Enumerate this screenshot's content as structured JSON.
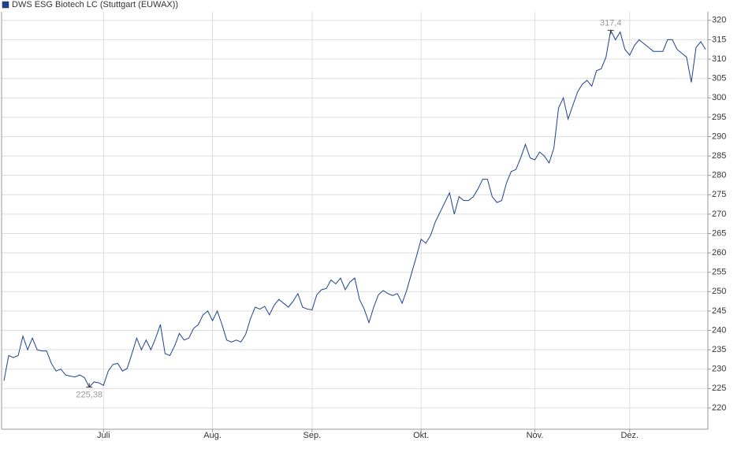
{
  "chart_data": {
    "type": "line",
    "series": [
      {
        "name": "DWS ESG Biotech LC (Stuttgart (EUWAX))",
        "color": "#1d4290",
        "values": [
          227,
          233.5,
          233,
          233.5,
          238.5,
          235,
          238,
          235,
          234.7,
          234.7,
          231.5,
          229.5,
          230,
          228.5,
          228.2,
          228,
          228.5,
          227.8,
          225.38,
          226.7,
          226.5,
          225.8,
          229.5,
          231.2,
          231.5,
          229.5,
          230.2,
          234,
          238,
          235,
          237.5,
          235,
          238,
          241.5,
          234,
          233.5,
          236,
          239.2,
          237.5,
          238,
          240.5,
          241.5,
          244,
          245,
          242.5,
          245,
          241.5,
          237.5,
          237,
          237.5,
          237,
          239,
          243,
          246,
          245.5,
          246.2,
          244,
          246.5,
          248,
          247,
          246,
          247.5,
          249.5,
          246,
          245.5,
          245.3,
          249.2,
          250.5,
          250.8,
          253,
          252,
          253.5,
          250.5,
          252.5,
          253.5,
          248,
          245.5,
          242,
          246,
          249.2,
          250.3,
          249.5,
          249,
          249.5,
          247,
          250.5,
          254.8,
          259,
          263.5,
          262.5,
          264.5,
          268,
          270.5,
          273,
          275.5,
          270,
          274.5,
          273.5,
          273.5,
          274.5,
          276.5,
          279,
          279,
          274.5,
          273,
          273.5,
          278,
          281,
          281.5,
          284.5,
          288,
          284.5,
          284,
          286,
          285,
          283.2,
          287,
          297.4,
          300,
          294.5,
          298,
          301.5,
          303.5,
          304.5,
          303,
          307,
          307.5,
          310.5,
          317.4,
          315,
          317,
          312.5,
          311,
          313.5,
          315,
          314,
          313,
          312,
          312,
          312,
          315,
          315,
          312.5,
          311.5,
          310.5,
          304,
          313,
          314.5,
          312.5
        ],
        "value_labels": [
          null,
          null,
          null,
          null,
          null,
          null,
          null,
          null,
          null,
          null,
          null,
          null,
          null,
          null,
          null,
          null,
          null,
          null,
          "225,38",
          null,
          null,
          null,
          null,
          null,
          null,
          null,
          null,
          null,
          null,
          null,
          null,
          null,
          null,
          null,
          null,
          null,
          null,
          null,
          null,
          null,
          null,
          null,
          null,
          null,
          null,
          null,
          null,
          null,
          null,
          null,
          null,
          null,
          null,
          null,
          null,
          null,
          null,
          null,
          null,
          null,
          null,
          null,
          null,
          null,
          null,
          null,
          null,
          null,
          null,
          null,
          null,
          null,
          null,
          null,
          null,
          null,
          null,
          null,
          null,
          null,
          null,
          null,
          null,
          null,
          null,
          null,
          null,
          null,
          null,
          null,
          null,
          null,
          null,
          null,
          null,
          null,
          null,
          null,
          null,
          null,
          null,
          null,
          null,
          null,
          null,
          null,
          null,
          null,
          null,
          null,
          null,
          null,
          null,
          null,
          null,
          null,
          null,
          null,
          null,
          null,
          null,
          null,
          null,
          null,
          null,
          null,
          null,
          null,
          "317,4",
          null,
          null,
          null,
          null,
          null,
          null,
          null,
          null,
          null,
          null,
          null,
          null,
          null,
          null,
          null,
          null,
          null,
          null,
          null,
          null
        ]
      }
    ],
    "categories": [
      null,
      null,
      null,
      null,
      null,
      null,
      null,
      null,
      null,
      null,
      null,
      null,
      null,
      null,
      null,
      null,
      null,
      null,
      null,
      null,
      null,
      "Juli",
      null,
      null,
      null,
      null,
      null,
      null,
      null,
      null,
      null,
      null,
      null,
      null,
      null,
      null,
      null,
      null,
      null,
      null,
      null,
      null,
      null,
      null,
      "Aug.",
      null,
      null,
      null,
      null,
      null,
      null,
      null,
      null,
      null,
      null,
      null,
      null,
      null,
      null,
      null,
      null,
      null,
      null,
      null,
      null,
      "Sep.",
      null,
      null,
      null,
      null,
      null,
      null,
      null,
      null,
      null,
      null,
      null,
      null,
      null,
      null,
      null,
      null,
      null,
      null,
      null,
      null,
      null,
      null,
      "Okt.",
      null,
      null,
      null,
      null,
      null,
      null,
      null,
      null,
      null,
      null,
      null,
      null,
      null,
      null,
      null,
      null,
      null,
      null,
      null,
      null,
      null,
      null,
      null,
      "Nov.",
      null,
      null,
      null,
      null,
      null,
      null,
      null,
      null,
      null,
      null,
      null,
      null,
      null,
      null,
      null,
      null,
      null,
      null,
      null,
      "Dez.",
      null,
      null,
      null,
      null,
      null,
      null,
      null,
      null,
      null,
      null,
      null,
      null,
      null,
      null,
      null,
      null
    ],
    "ylim": [
      214.5,
      322.2
    ],
    "yticks": [
      220,
      225,
      230,
      235,
      240,
      245,
      250,
      255,
      260,
      265,
      270,
      275,
      280,
      285,
      290,
      295,
      300,
      305,
      310,
      315,
      320
    ],
    "grid": true,
    "legend": "top-left"
  }
}
